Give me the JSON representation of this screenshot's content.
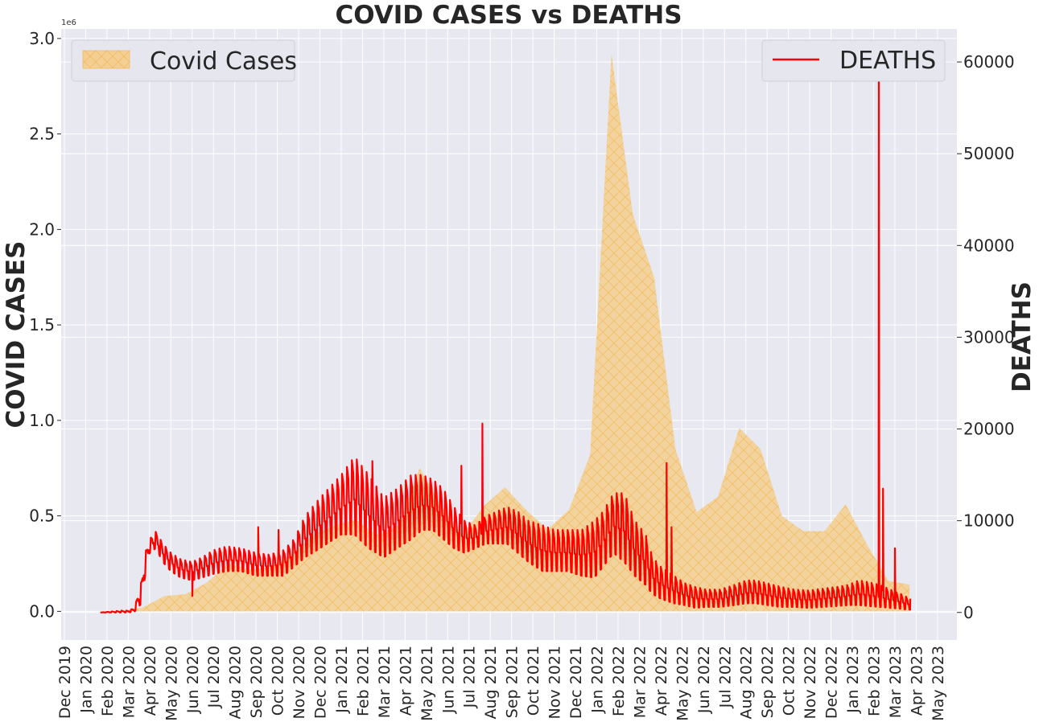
{
  "chart_data": {
    "type": "area",
    "title": "COVID CASES vs DEATHS",
    "ylabel_left": "COVID CASES",
    "ylabel_right": "DEATHS",
    "xlabel": "",
    "left_axis_offset_label": "1e6",
    "grid": true,
    "x_ticks": [
      "Dec 2019",
      "Jan 2020",
      "Feb 2020",
      "Mar 2020",
      "Apr 2020",
      "May 2020",
      "Jun 2020",
      "Jul 2020",
      "Aug 2020",
      "Sep 2020",
      "Oct 2020",
      "Nov 2020",
      "Dec 2020",
      "Jan 2021",
      "Feb 2021",
      "Mar 2021",
      "Apr 2021",
      "May 2021",
      "Jun 2021",
      "Jul 2021",
      "Aug 2021",
      "Sep 2021",
      "Oct 2021",
      "Nov 2021",
      "Dec 2021",
      "Jan 2022",
      "Feb 2022",
      "Mar 2022",
      "Apr 2022",
      "May 2022",
      "Jun 2022",
      "Jul 2022",
      "Aug 2022",
      "Sep 2022",
      "Oct 2022",
      "Nov 2022",
      "Dec 2022",
      "Jan 2023",
      "Feb 2023",
      "Mar 2023",
      "Apr 2023",
      "May 2023"
    ],
    "y_left": {
      "ticks": [
        "0.0",
        "0.5",
        "1.0",
        "1.5",
        "2.0",
        "2.5",
        "3.0"
      ],
      "tick_values": [
        0,
        0.5,
        1.0,
        1.5,
        2.0,
        2.5,
        3.0
      ],
      "range": [
        -0.15,
        3.05
      ]
    },
    "y_right": {
      "ticks": [
        "0",
        "10000",
        "20000",
        "30000",
        "40000",
        "50000",
        "60000"
      ],
      "tick_values": [
        0,
        10000,
        20000,
        30000,
        40000,
        50000,
        60000
      ],
      "range": [
        -3000,
        63600
      ]
    },
    "series": [
      {
        "name": "Covid Cases",
        "kind": "area",
        "axis": "left",
        "color": "#f0c27b",
        "hatch_color": "#f5a623",
        "points": [
          [
            "2020-01-22",
            0
          ],
          [
            "2020-02-22",
            0.002
          ],
          [
            "2020-03-22",
            0.02
          ],
          [
            "2020-04-22",
            0.08
          ],
          [
            "2020-05-22",
            0.09
          ],
          [
            "2020-06-22",
            0.15
          ],
          [
            "2020-07-22",
            0.25
          ],
          [
            "2020-08-22",
            0.22
          ],
          [
            "2020-09-22",
            0.23
          ],
          [
            "2020-10-22",
            0.3
          ],
          [
            "2020-11-22",
            0.4
          ],
          [
            "2020-12-22",
            0.45
          ],
          [
            "2021-01-22",
            0.48
          ],
          [
            "2021-02-22",
            0.4
          ],
          [
            "2021-03-22",
            0.45
          ],
          [
            "2021-04-22",
            0.75
          ],
          [
            "2021-05-22",
            0.55
          ],
          [
            "2021-06-22",
            0.4
          ],
          [
            "2021-07-22",
            0.55
          ],
          [
            "2021-08-22",
            0.65
          ],
          [
            "2021-09-22",
            0.53
          ],
          [
            "2021-10-22",
            0.43
          ],
          [
            "2021-11-22",
            0.53
          ],
          [
            "2021-12-22",
            0.82
          ],
          [
            "2022-01-22",
            2.92
          ],
          [
            "2022-02-22",
            2.08
          ],
          [
            "2022-03-22",
            1.75
          ],
          [
            "2022-04-22",
            0.85
          ],
          [
            "2022-05-22",
            0.52
          ],
          [
            "2022-06-22",
            0.6
          ],
          [
            "2022-07-22",
            0.96
          ],
          [
            "2022-08-22",
            0.85
          ],
          [
            "2022-09-22",
            0.5
          ],
          [
            "2022-10-22",
            0.42
          ],
          [
            "2022-11-22",
            0.42
          ],
          [
            "2022-12-22",
            0.56
          ],
          [
            "2023-01-22",
            0.35
          ],
          [
            "2023-02-22",
            0.16
          ],
          [
            "2023-03-22",
            0.14
          ]
        ]
      },
      {
        "name": "DEATHS",
        "kind": "line",
        "axis": "right",
        "color": "#ff0000",
        "envelope": [
          [
            "2020-01-22",
            0,
            0
          ],
          [
            "2020-02-22",
            0,
            200
          ],
          [
            "2020-03-01",
            0,
            200
          ],
          [
            "2020-03-10",
            100,
            500
          ],
          [
            "2020-03-20",
            1000,
            3500
          ],
          [
            "2020-03-25",
            4000,
            6500
          ],
          [
            "2020-04-01",
            6500,
            8000
          ],
          [
            "2020-04-10",
            7000,
            8800
          ],
          [
            "2020-04-20",
            5500,
            7500
          ],
          [
            "2020-05-01",
            4500,
            6500
          ],
          [
            "2020-05-15",
            3800,
            5800
          ],
          [
            "2020-06-01",
            3500,
            5500
          ],
          [
            "2020-06-15",
            3800,
            6000
          ],
          [
            "2020-07-01",
            4200,
            6800
          ],
          [
            "2020-07-20",
            4500,
            7200
          ],
          [
            "2020-08-10",
            4500,
            7000
          ],
          [
            "2020-09-01",
            4000,
            6500
          ],
          [
            "2020-09-20",
            4000,
            6300
          ],
          [
            "2020-10-10",
            4000,
            6800
          ],
          [
            "2020-10-25",
            5000,
            8000
          ],
          [
            "2020-11-10",
            6000,
            10500
          ],
          [
            "2020-12-01",
            7000,
            12500
          ],
          [
            "2021-01-01",
            8500,
            15000
          ],
          [
            "2021-01-20",
            8500,
            17000
          ],
          [
            "2021-02-10",
            7000,
            15000
          ],
          [
            "2021-03-01",
            6000,
            12500
          ],
          [
            "2021-03-20",
            7000,
            13500
          ],
          [
            "2021-04-10",
            8000,
            15000
          ],
          [
            "2021-04-25",
            9000,
            15000
          ],
          [
            "2021-05-10",
            9000,
            14500
          ],
          [
            "2021-05-25",
            8000,
            13500
          ],
          [
            "2021-06-10",
            7000,
            11500
          ],
          [
            "2021-06-25",
            6500,
            10000
          ],
          [
            "2021-07-10",
            7000,
            9500
          ],
          [
            "2021-07-25",
            7500,
            10500
          ],
          [
            "2021-08-10",
            7500,
            11000
          ],
          [
            "2021-08-25",
            7500,
            11500
          ],
          [
            "2021-09-10",
            6500,
            11000
          ],
          [
            "2021-09-25",
            5500,
            10000
          ],
          [
            "2021-10-15",
            4500,
            9500
          ],
          [
            "2021-11-01",
            4500,
            9000
          ],
          [
            "2021-11-20",
            4500,
            9000
          ],
          [
            "2021-12-10",
            4000,
            9000
          ],
          [
            "2021-12-28",
            3800,
            10000
          ],
          [
            "2022-01-10",
            5000,
            11000
          ],
          [
            "2022-01-25",
            6500,
            13000
          ],
          [
            "2022-02-10",
            5500,
            13000
          ],
          [
            "2022-02-25",
            4000,
            10000
          ],
          [
            "2022-03-10",
            3000,
            8500
          ],
          [
            "2022-03-20",
            2000,
            6000
          ],
          [
            "2022-04-01",
            1500,
            5000
          ],
          [
            "2022-04-20",
            1000,
            4000
          ],
          [
            "2022-05-05",
            800,
            3200
          ],
          [
            "2022-05-20",
            500,
            2800
          ],
          [
            "2022-06-05",
            600,
            2500
          ],
          [
            "2022-06-25",
            600,
            2500
          ],
          [
            "2022-07-15",
            800,
            3000
          ],
          [
            "2022-08-01",
            1000,
            3500
          ],
          [
            "2022-08-15",
            1000,
            3500
          ],
          [
            "2022-09-01",
            800,
            3200
          ],
          [
            "2022-09-20",
            600,
            2800
          ],
          [
            "2022-10-10",
            600,
            2500
          ],
          [
            "2022-10-30",
            500,
            2400
          ],
          [
            "2022-11-20",
            600,
            2600
          ],
          [
            "2022-12-10",
            700,
            2800
          ],
          [
            "2022-12-25",
            800,
            3000
          ],
          [
            "2023-01-10",
            800,
            3500
          ],
          [
            "2023-01-25",
            700,
            3300
          ],
          [
            "2023-02-10",
            600,
            3000
          ],
          [
            "2023-02-25",
            500,
            2500
          ],
          [
            "2023-03-10",
            400,
            2000
          ],
          [
            "2023-03-20",
            300,
            1600
          ]
        ],
        "spikes": [
          [
            "2020-05-31",
            1800
          ],
          [
            "2020-09-04",
            9300
          ],
          [
            "2020-10-02",
            9000
          ],
          [
            "2021-02-15",
            16500
          ],
          [
            "2021-06-20",
            16000
          ],
          [
            "2021-07-20",
            20600
          ],
          [
            "2022-04-09",
            16300
          ],
          [
            "2022-04-16",
            9300
          ],
          [
            "2023-02-08",
            61000
          ],
          [
            "2023-02-14",
            13500
          ],
          [
            "2023-03-01",
            7000
          ]
        ],
        "end": [
          "2023-03-23",
          1500
        ]
      }
    ],
    "legend": [
      {
        "label": "Covid Cases",
        "placement": "upper left"
      },
      {
        "label": "DEATHS",
        "placement": "upper right"
      }
    ]
  }
}
